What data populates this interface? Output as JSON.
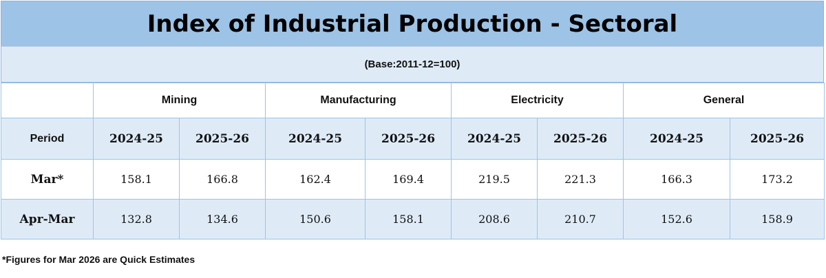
{
  "title": "Index of Industrial Production - Sectoral",
  "base": "(Base:2011-12=100)",
  "sectors": [
    "Mining",
    "Manufacturing",
    "Electricity",
    "General"
  ],
  "period_label": "Period",
  "years": [
    "2024-25",
    "2025-26"
  ],
  "rows": [
    {
      "label": "Mar*",
      "values": [
        "158.1",
        "166.8",
        "162.4",
        "169.4",
        "219.5",
        "221.3",
        "166.3",
        "173.2"
      ]
    },
    {
      "label": "Apr-Mar",
      "values": [
        "132.8",
        "134.6",
        "150.6",
        "158.1",
        "208.6",
        "210.7",
        "152.6",
        "158.9"
      ]
    }
  ],
  "footnote": "*Figures for Mar 2026 are Quick Estimates",
  "colors": {
    "title_bg": "#9dc3e6",
    "light_bg": "#deebf7",
    "border": "#9dc3e6"
  }
}
